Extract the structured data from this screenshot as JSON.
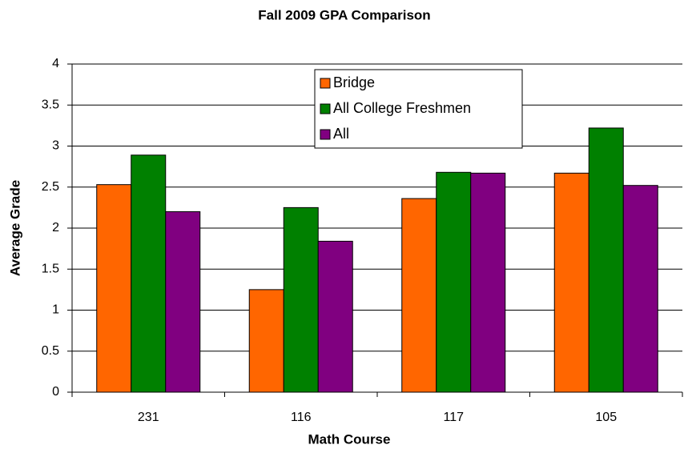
{
  "chart_data": {
    "type": "bar",
    "title": "Fall 2009 GPA Comparison",
    "x_label": "Math Course",
    "y_label": "Average Grade",
    "categories": [
      "231",
      "116",
      "117",
      "105"
    ],
    "series": [
      {
        "name": "Bridge",
        "color": "#ff6600",
        "values": [
          2.53,
          1.25,
          2.36,
          2.67
        ]
      },
      {
        "name": "All College Freshmen",
        "color": "#008000",
        "values": [
          2.89,
          2.25,
          2.68,
          3.22
        ]
      },
      {
        "name": "All",
        "color": "#800080",
        "values": [
          2.2,
          1.84,
          2.67,
          2.52
        ]
      }
    ],
    "ylim": [
      0,
      4
    ],
    "yticks": [
      0,
      0.5,
      1,
      1.5,
      2,
      2.5,
      3,
      3.5,
      4
    ],
    "grid": true,
    "legend": "top"
  }
}
